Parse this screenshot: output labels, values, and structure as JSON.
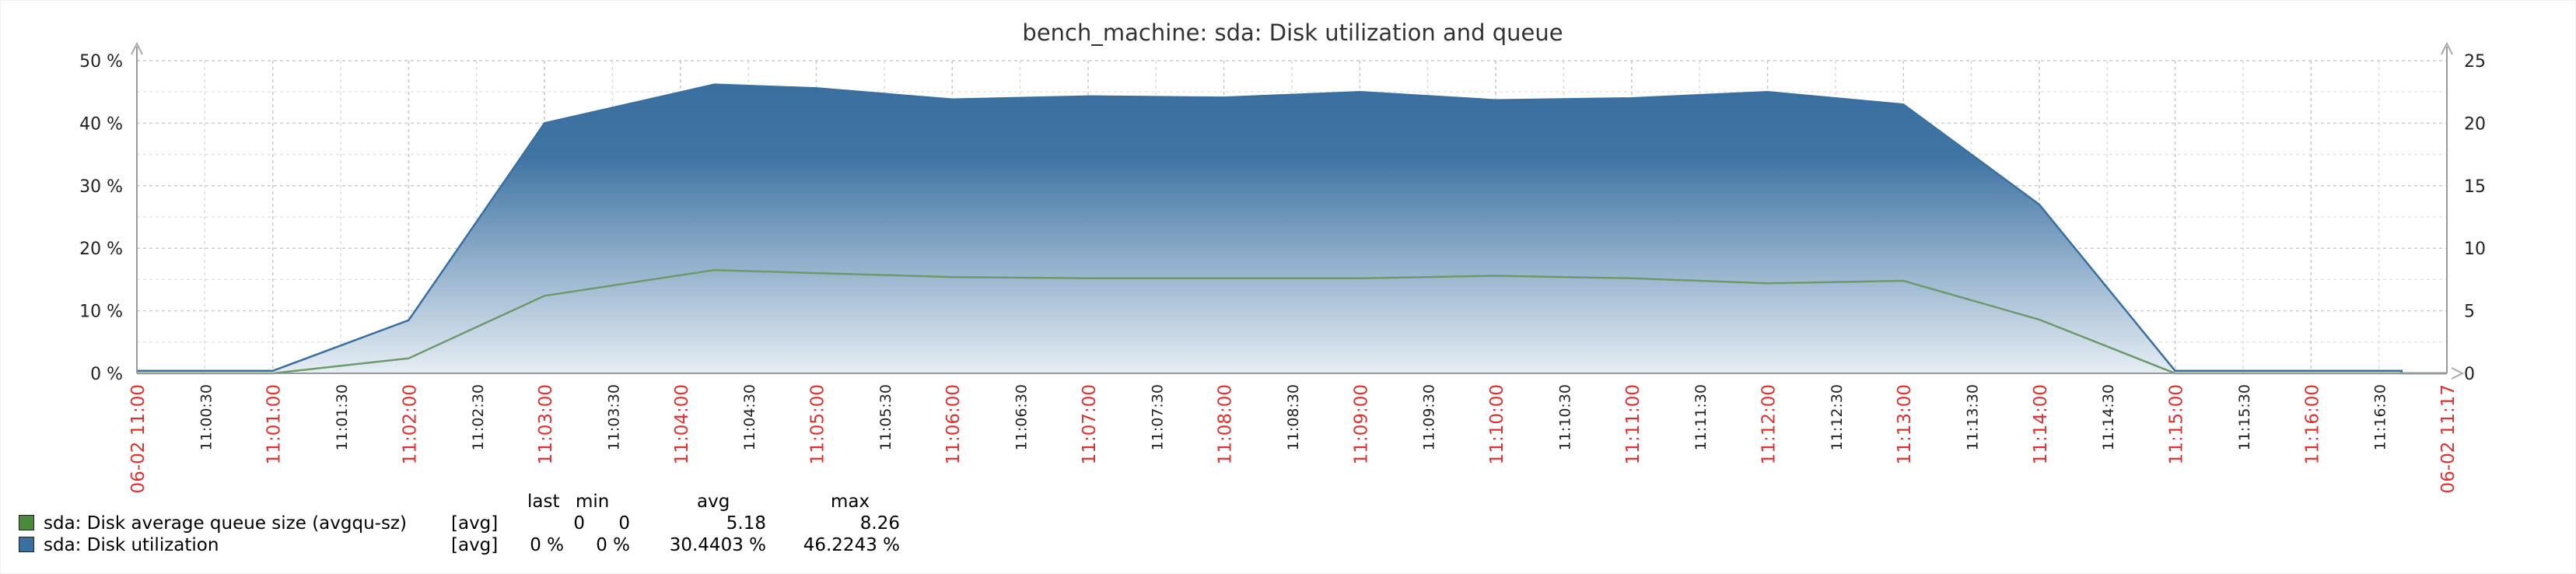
{
  "chart_data": {
    "type": "area",
    "title": "bench_machine: sda: Disk utilization and queue",
    "y_left": {
      "ticks": [
        "0 %",
        "10 %",
        "20 %",
        "30 %",
        "40 %",
        "50 %"
      ],
      "range": [
        0,
        50
      ]
    },
    "y_right": {
      "ticks": [
        "0",
        "5",
        "10",
        "15",
        "20",
        "25"
      ],
      "range": [
        0,
        25
      ]
    },
    "x_range": [
      "11:00:00",
      "11:17:00"
    ],
    "x_ticks": [
      {
        "t": "11:00:30",
        "label": "11:00:30",
        "major": false
      },
      {
        "t": "11:01:00",
        "label": "11:01:00",
        "major": true
      },
      {
        "t": "11:01:30",
        "label": "11:01:30",
        "major": false
      },
      {
        "t": "11:02:00",
        "label": "11:02:00",
        "major": true
      },
      {
        "t": "11:02:30",
        "label": "11:02:30",
        "major": false
      },
      {
        "t": "11:03:00",
        "label": "11:03:00",
        "major": true
      },
      {
        "t": "11:03:30",
        "label": "11:03:30",
        "major": false
      },
      {
        "t": "11:04:00",
        "label": "11:04:00",
        "major": true
      },
      {
        "t": "11:04:30",
        "label": "11:04:30",
        "major": false
      },
      {
        "t": "11:05:00",
        "label": "11:05:00",
        "major": true
      },
      {
        "t": "11:05:30",
        "label": "11:05:30",
        "major": false
      },
      {
        "t": "11:06:00",
        "label": "11:06:00",
        "major": true
      },
      {
        "t": "11:06:30",
        "label": "11:06:30",
        "major": false
      },
      {
        "t": "11:07:00",
        "label": "11:07:00",
        "major": true
      },
      {
        "t": "11:07:30",
        "label": "11:07:30",
        "major": false
      },
      {
        "t": "11:08:00",
        "label": "11:08:00",
        "major": true
      },
      {
        "t": "11:08:30",
        "label": "11:08:30",
        "major": false
      },
      {
        "t": "11:09:00",
        "label": "11:09:00",
        "major": true
      },
      {
        "t": "11:09:30",
        "label": "11:09:30",
        "major": false
      },
      {
        "t": "11:10:00",
        "label": "11:10:00",
        "major": true
      },
      {
        "t": "11:10:30",
        "label": "11:10:30",
        "major": false
      },
      {
        "t": "11:11:00",
        "label": "11:11:00",
        "major": true
      },
      {
        "t": "11:11:30",
        "label": "11:11:30",
        "major": false
      },
      {
        "t": "11:12:00",
        "label": "11:12:00",
        "major": true
      },
      {
        "t": "11:12:30",
        "label": "11:12:30",
        "major": false
      },
      {
        "t": "11:13:00",
        "label": "11:13:00",
        "major": true
      },
      {
        "t": "11:13:30",
        "label": "11:13:30",
        "major": false
      },
      {
        "t": "11:14:00",
        "label": "11:14:00",
        "major": true
      },
      {
        "t": "11:14:30",
        "label": "11:14:30",
        "major": false
      },
      {
        "t": "11:15:00",
        "label": "11:15:00",
        "major": true
      },
      {
        "t": "11:15:30",
        "label": "11:15:30",
        "major": false
      },
      {
        "t": "11:16:00",
        "label": "11:16:00",
        "major": true
      },
      {
        "t": "11:16:30",
        "label": "11:16:30",
        "major": false
      },
      {
        "t": "11:17:00",
        "label": "11:17:00",
        "major": true
      }
    ],
    "x_edge_labels": {
      "start": "06-02 11:00",
      "end": "06-02 11:17"
    },
    "series": [
      {
        "name": "sda: Disk utilization",
        "axis": "left",
        "style": "filled",
        "color": "#3a6f9f",
        "fill_bottom": "#e6edf4",
        "points": [
          [
            "11:00:00",
            0.4
          ],
          [
            "11:01:00",
            0.4
          ],
          [
            "11:02:00",
            8.5
          ],
          [
            "11:03:00",
            40.0
          ],
          [
            "11:04:15",
            46.2
          ],
          [
            "11:05:00",
            45.6
          ],
          [
            "11:06:00",
            43.8
          ],
          [
            "11:07:00",
            44.3
          ],
          [
            "11:08:00",
            44.1
          ],
          [
            "11:09:00",
            45.0
          ],
          [
            "11:10:00",
            43.7
          ],
          [
            "11:11:00",
            44.0
          ],
          [
            "11:12:00",
            45.0
          ],
          [
            "11:13:00",
            43.0
          ],
          [
            "11:14:00",
            27.0
          ],
          [
            "11:15:00",
            0.4
          ],
          [
            "11:16:00",
            0.4
          ],
          [
            "11:16:40",
            0.4
          ],
          [
            "11:16:40",
            0.0
          ],
          [
            "11:17:00",
            0.0
          ]
        ]
      },
      {
        "name": "sda: Disk average queue size (avgqu-sz)",
        "axis": "right",
        "style": "line",
        "color": "#6d9a6d",
        "points": [
          [
            "11:00:00",
            0.0
          ],
          [
            "11:01:00",
            0.0
          ],
          [
            "11:02:00",
            1.2
          ],
          [
            "11:03:00",
            6.2
          ],
          [
            "11:04:15",
            8.26
          ],
          [
            "11:06:00",
            7.7
          ],
          [
            "11:07:00",
            7.6
          ],
          [
            "11:08:00",
            7.6
          ],
          [
            "11:09:00",
            7.6
          ],
          [
            "11:10:00",
            7.8
          ],
          [
            "11:11:00",
            7.6
          ],
          [
            "11:12:00",
            7.2
          ],
          [
            "11:13:00",
            7.4
          ],
          [
            "11:14:00",
            4.3
          ],
          [
            "11:15:00",
            0.0
          ],
          [
            "11:17:00",
            0.0
          ]
        ]
      }
    ],
    "grid": true
  },
  "legend": {
    "headers": {
      "last": "last",
      "min": "min",
      "avg": "avg",
      "max": "max"
    },
    "rows": [
      {
        "color": "#4c8a3b",
        "name": "sda: Disk average queue size (avgqu-sz)",
        "func": "[avg]",
        "last": "0",
        "min": "0",
        "avg": "5.18",
        "max": "8.26"
      },
      {
        "color": "#3a6f9f",
        "name": "sda: Disk utilization",
        "func": "[avg]",
        "last": "0 %",
        "min": "0 %",
        "avg": "30.4403 %",
        "max": "46.2243 %"
      }
    ]
  }
}
